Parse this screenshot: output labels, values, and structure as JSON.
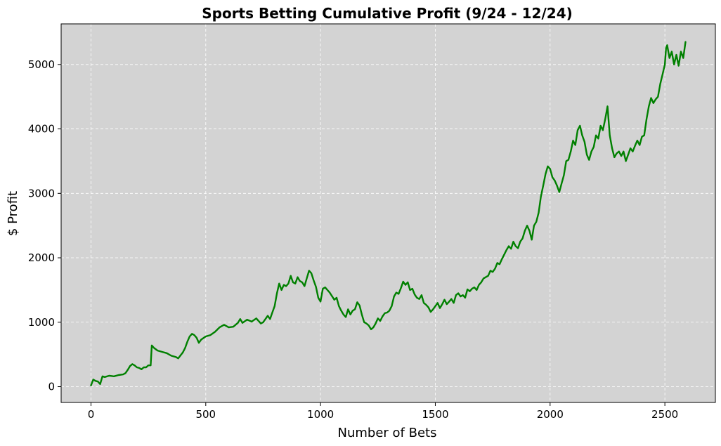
{
  "chart_data": {
    "type": "line",
    "title": "Sports Betting Cumulative Profit (9/24 - 12/24)",
    "xlabel": "Number of Bets",
    "ylabel": "$ Profit",
    "xlim": [
      -130,
      2720
    ],
    "ylim": [
      -245,
      5630
    ],
    "xticks": [
      0,
      500,
      1000,
      1500,
      2000,
      2500
    ],
    "yticks": [
      0,
      1000,
      2000,
      3000,
      4000,
      5000
    ],
    "grid": true,
    "colors": {
      "plot_background": "#d3d3d3",
      "line": "#008000",
      "grid": "#ffffff"
    },
    "series": [
      {
        "values": [
          [
            0,
            20
          ],
          [
            10,
            110
          ],
          [
            20,
            90
          ],
          [
            30,
            80
          ],
          [
            40,
            40
          ],
          [
            50,
            160
          ],
          [
            60,
            150
          ],
          [
            80,
            170
          ],
          [
            100,
            160
          ],
          [
            120,
            180
          ],
          [
            140,
            190
          ],
          [
            150,
            210
          ],
          [
            160,
            260
          ],
          [
            170,
            320
          ],
          [
            180,
            350
          ],
          [
            190,
            330
          ],
          [
            200,
            300
          ],
          [
            210,
            290
          ],
          [
            220,
            270
          ],
          [
            230,
            300
          ],
          [
            240,
            300
          ],
          [
            250,
            330
          ],
          [
            260,
            330
          ],
          [
            265,
            640
          ],
          [
            275,
            600
          ],
          [
            290,
            560
          ],
          [
            310,
            540
          ],
          [
            330,
            520
          ],
          [
            350,
            480
          ],
          [
            370,
            460
          ],
          [
            380,
            440
          ],
          [
            400,
            530
          ],
          [
            410,
            600
          ],
          [
            420,
            700
          ],
          [
            430,
            780
          ],
          [
            440,
            820
          ],
          [
            450,
            800
          ],
          [
            460,
            760
          ],
          [
            470,
            680
          ],
          [
            480,
            730
          ],
          [
            500,
            780
          ],
          [
            520,
            800
          ],
          [
            540,
            850
          ],
          [
            560,
            920
          ],
          [
            580,
            960
          ],
          [
            600,
            920
          ],
          [
            620,
            930
          ],
          [
            640,
            990
          ],
          [
            650,
            1050
          ],
          [
            660,
            990
          ],
          [
            680,
            1040
          ],
          [
            700,
            1010
          ],
          [
            720,
            1060
          ],
          [
            740,
            980
          ],
          [
            750,
            1000
          ],
          [
            770,
            1100
          ],
          [
            780,
            1050
          ],
          [
            790,
            1150
          ],
          [
            800,
            1250
          ],
          [
            810,
            1450
          ],
          [
            820,
            1600
          ],
          [
            830,
            1500
          ],
          [
            840,
            1580
          ],
          [
            850,
            1560
          ],
          [
            860,
            1600
          ],
          [
            870,
            1720
          ],
          [
            880,
            1620
          ],
          [
            890,
            1600
          ],
          [
            900,
            1700
          ],
          [
            910,
            1640
          ],
          [
            920,
            1620
          ],
          [
            930,
            1560
          ],
          [
            940,
            1680
          ],
          [
            950,
            1800
          ],
          [
            960,
            1760
          ],
          [
            970,
            1650
          ],
          [
            980,
            1550
          ],
          [
            990,
            1380
          ],
          [
            1000,
            1320
          ],
          [
            1010,
            1520
          ],
          [
            1020,
            1540
          ],
          [
            1030,
            1500
          ],
          [
            1040,
            1460
          ],
          [
            1060,
            1350
          ],
          [
            1070,
            1380
          ],
          [
            1080,
            1250
          ],
          [
            1090,
            1180
          ],
          [
            1100,
            1120
          ],
          [
            1110,
            1080
          ],
          [
            1120,
            1200
          ],
          [
            1130,
            1120
          ],
          [
            1140,
            1180
          ],
          [
            1150,
            1200
          ],
          [
            1160,
            1310
          ],
          [
            1170,
            1260
          ],
          [
            1180,
            1120
          ],
          [
            1190,
            1000
          ],
          [
            1200,
            980
          ],
          [
            1210,
            950
          ],
          [
            1220,
            890
          ],
          [
            1230,
            920
          ],
          [
            1240,
            980
          ],
          [
            1250,
            1060
          ],
          [
            1260,
            1020
          ],
          [
            1270,
            1090
          ],
          [
            1280,
            1140
          ],
          [
            1290,
            1150
          ],
          [
            1300,
            1180
          ],
          [
            1310,
            1250
          ],
          [
            1320,
            1400
          ],
          [
            1330,
            1460
          ],
          [
            1340,
            1440
          ],
          [
            1350,
            1530
          ],
          [
            1360,
            1630
          ],
          [
            1370,
            1580
          ],
          [
            1380,
            1620
          ],
          [
            1390,
            1500
          ],
          [
            1400,
            1520
          ],
          [
            1410,
            1430
          ],
          [
            1420,
            1380
          ],
          [
            1430,
            1360
          ],
          [
            1440,
            1420
          ],
          [
            1450,
            1300
          ],
          [
            1460,
            1270
          ],
          [
            1470,
            1230
          ],
          [
            1480,
            1160
          ],
          [
            1490,
            1200
          ],
          [
            1500,
            1250
          ],
          [
            1510,
            1300
          ],
          [
            1520,
            1220
          ],
          [
            1530,
            1280
          ],
          [
            1540,
            1350
          ],
          [
            1550,
            1280
          ],
          [
            1560,
            1320
          ],
          [
            1570,
            1360
          ],
          [
            1580,
            1300
          ],
          [
            1590,
            1420
          ],
          [
            1600,
            1450
          ],
          [
            1610,
            1400
          ],
          [
            1620,
            1420
          ],
          [
            1630,
            1380
          ],
          [
            1640,
            1510
          ],
          [
            1650,
            1480
          ],
          [
            1660,
            1520
          ],
          [
            1670,
            1540
          ],
          [
            1680,
            1500
          ],
          [
            1690,
            1580
          ],
          [
            1700,
            1620
          ],
          [
            1710,
            1680
          ],
          [
            1720,
            1700
          ],
          [
            1730,
            1720
          ],
          [
            1740,
            1800
          ],
          [
            1750,
            1780
          ],
          [
            1760,
            1830
          ],
          [
            1770,
            1920
          ],
          [
            1780,
            1900
          ],
          [
            1790,
            1980
          ],
          [
            1800,
            2050
          ],
          [
            1810,
            2120
          ],
          [
            1820,
            2180
          ],
          [
            1830,
            2140
          ],
          [
            1840,
            2250
          ],
          [
            1850,
            2180
          ],
          [
            1860,
            2150
          ],
          [
            1870,
            2250
          ],
          [
            1880,
            2300
          ],
          [
            1890,
            2420
          ],
          [
            1900,
            2500
          ],
          [
            1910,
            2420
          ],
          [
            1920,
            2280
          ],
          [
            1930,
            2500
          ],
          [
            1940,
            2560
          ],
          [
            1950,
            2700
          ],
          [
            1960,
            2950
          ],
          [
            1970,
            3120
          ],
          [
            1980,
            3300
          ],
          [
            1990,
            3420
          ],
          [
            2000,
            3380
          ],
          [
            2010,
            3250
          ],
          [
            2020,
            3200
          ],
          [
            2030,
            3120
          ],
          [
            2040,
            3020
          ],
          [
            2050,
            3150
          ],
          [
            2060,
            3280
          ],
          [
            2070,
            3500
          ],
          [
            2080,
            3520
          ],
          [
            2090,
            3650
          ],
          [
            2100,
            3820
          ],
          [
            2110,
            3750
          ],
          [
            2120,
            3980
          ],
          [
            2130,
            4050
          ],
          [
            2140,
            3900
          ],
          [
            2150,
            3800
          ],
          [
            2160,
            3600
          ],
          [
            2170,
            3520
          ],
          [
            2180,
            3650
          ],
          [
            2190,
            3720
          ],
          [
            2200,
            3900
          ],
          [
            2210,
            3850
          ],
          [
            2220,
            4050
          ],
          [
            2230,
            3980
          ],
          [
            2240,
            4150
          ],
          [
            2250,
            4350
          ],
          [
            2260,
            3900
          ],
          [
            2270,
            3700
          ],
          [
            2280,
            3560
          ],
          [
            2290,
            3620
          ],
          [
            2300,
            3650
          ],
          [
            2310,
            3580
          ],
          [
            2320,
            3650
          ],
          [
            2330,
            3500
          ],
          [
            2340,
            3600
          ],
          [
            2350,
            3700
          ],
          [
            2360,
            3650
          ],
          [
            2370,
            3740
          ],
          [
            2380,
            3820
          ],
          [
            2390,
            3750
          ],
          [
            2400,
            3880
          ],
          [
            2410,
            3900
          ],
          [
            2420,
            4150
          ],
          [
            2430,
            4350
          ],
          [
            2440,
            4480
          ],
          [
            2450,
            4400
          ],
          [
            2460,
            4460
          ],
          [
            2470,
            4500
          ],
          [
            2480,
            4700
          ],
          [
            2490,
            4850
          ],
          [
            2500,
            5000
          ],
          [
            2505,
            5250
          ],
          [
            2510,
            5300
          ],
          [
            2520,
            5100
          ],
          [
            2530,
            5200
          ],
          [
            2540,
            5000
          ],
          [
            2550,
            5150
          ],
          [
            2560,
            4980
          ],
          [
            2570,
            5200
          ],
          [
            2580,
            5100
          ],
          [
            2590,
            5350
          ]
        ]
      }
    ]
  }
}
